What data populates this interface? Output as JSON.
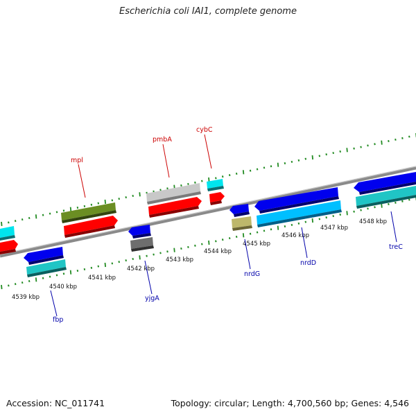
{
  "title": "Escherichia coli IAI1, complete genome",
  "accession": "Accession: NC_011741",
  "summary": "Topology: circular; Length: 4,700,560 bp; Genes: 4,546",
  "kbp_labels": [
    "4539 kbp",
    "4540 kbp",
    "4541 kbp",
    "4542 kbp",
    "4543 kbp",
    "4544 kbp",
    "4545 kbp",
    "4546 kbp",
    "4547 kbp",
    "4548 kbp"
  ],
  "genes_top": [
    "mpl",
    "pmbA",
    "cybC"
  ],
  "genes_bottom": [
    "fbp",
    "yjgA",
    "nrdG",
    "nrdD",
    "treC"
  ],
  "colors": {
    "red": "#ff0000",
    "olive": "#6b8e23",
    "light_gray": "#c0c0c0",
    "cyan": "#00e5ee",
    "blue": "#0000ee",
    "sky": "#00bfff",
    "teal": "#20c5c5",
    "dark_gray": "#6e6e6e",
    "khaki": "#bdb76b",
    "tick": "#228b22",
    "backbone": "#8a8a8a"
  }
}
